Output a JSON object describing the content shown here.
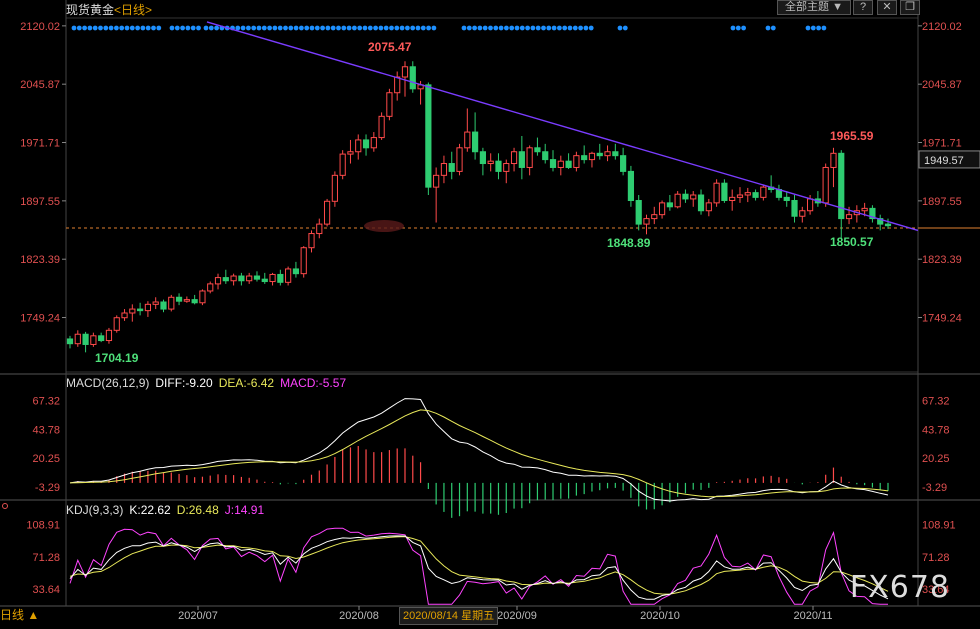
{
  "header": {
    "instrument": "现货黄金",
    "period_open": "<",
    "period": "日线",
    "period_close": ">"
  },
  "toolbar": {
    "theme_label": "全部主题",
    "theme_caret": "▼",
    "b1": "?",
    "b2": "✕",
    "b3": "❐"
  },
  "main_axis": {
    "ticks": [
      "2120.02",
      "2045.87",
      "1971.71",
      "1897.55",
      "1823.39",
      "1749.24"
    ],
    "current_price": "1949.57"
  },
  "annotations": {
    "high1": "2075.47",
    "low1": "1704.19",
    "low2": "1848.89",
    "high2": "1965.59",
    "low3": "1850.57"
  },
  "macd": {
    "title": "MACD(26,12,9)",
    "diff": "DIFF:-9.20",
    "dea": "DEA:-6.42",
    "macd": "MACD:-5.57",
    "ticks": [
      "67.32",
      "43.78",
      "20.25",
      "-3.29"
    ]
  },
  "kdj": {
    "title": "KDJ(9,3,3)",
    "k": "K:22.62",
    "d": "D:26.48",
    "j": "J:14.91",
    "ticks": [
      "108.91",
      "71.28",
      "33.64"
    ]
  },
  "xaxis": {
    "labels": [
      "2020/07",
      "2020/08",
      "2020/09",
      "2020/10",
      "2020/11"
    ],
    "cursor_date": "2020/08/14 星期五"
  },
  "footer": {
    "period_tab": "日线 ▲"
  },
  "watermark": "FX678",
  "colors": {
    "up": "#ff4a4a",
    "down": "#2ecc71",
    "trend": "#7a3cff",
    "dif": "#ffffff",
    "dea": "#e8e85a",
    "j": "#ff44ff",
    "dots": "#1e90ff"
  },
  "chart_data": {
    "type": "candlestick",
    "instrument": "现货黄金",
    "period": "日线",
    "ylim": [
      1680,
      2130
    ],
    "candles": [
      [
        1722,
        1726,
        1710,
        1716
      ],
      [
        1716,
        1733,
        1712,
        1728
      ],
      [
        1728,
        1731,
        1705,
        1715
      ],
      [
        1715,
        1730,
        1712,
        1726
      ],
      [
        1726,
        1730,
        1718,
        1720
      ],
      [
        1720,
        1736,
        1716,
        1733
      ],
      [
        1733,
        1752,
        1730,
        1749
      ],
      [
        1749,
        1760,
        1745,
        1755
      ],
      [
        1755,
        1766,
        1744,
        1760
      ],
      [
        1760,
        1768,
        1752,
        1758
      ],
      [
        1758,
        1770,
        1750,
        1766
      ],
      [
        1766,
        1775,
        1760,
        1769
      ],
      [
        1769,
        1772,
        1756,
        1760
      ],
      [
        1760,
        1778,
        1757,
        1775
      ],
      [
        1775,
        1780,
        1765,
        1770
      ],
      [
        1770,
        1776,
        1768,
        1772
      ],
      [
        1772,
        1778,
        1766,
        1768
      ],
      [
        1768,
        1785,
        1765,
        1783
      ],
      [
        1783,
        1795,
        1780,
        1792
      ],
      [
        1792,
        1805,
        1785,
        1800
      ],
      [
        1800,
        1810,
        1792,
        1796
      ],
      [
        1796,
        1805,
        1790,
        1802
      ],
      [
        1802,
        1806,
        1790,
        1796
      ],
      [
        1796,
        1806,
        1792,
        1802
      ],
      [
        1802,
        1808,
        1795,
        1798
      ],
      [
        1798,
        1806,
        1792,
        1795
      ],
      [
        1795,
        1806,
        1790,
        1804
      ],
      [
        1804,
        1810,
        1790,
        1794
      ],
      [
        1794,
        1814,
        1790,
        1811
      ],
      [
        1811,
        1820,
        1800,
        1805
      ],
      [
        1805,
        1840,
        1800,
        1838
      ],
      [
        1838,
        1860,
        1832,
        1856
      ],
      [
        1856,
        1875,
        1850,
        1868
      ],
      [
        1868,
        1900,
        1865,
        1897
      ],
      [
        1897,
        1935,
        1890,
        1930
      ],
      [
        1930,
        1962,
        1925,
        1957
      ],
      [
        1957,
        1975,
        1945,
        1960
      ],
      [
        1960,
        1982,
        1950,
        1975
      ],
      [
        1975,
        1982,
        1955,
        1965
      ],
      [
        1965,
        1985,
        1960,
        1978
      ],
      [
        1978,
        2010,
        1975,
        2005
      ],
      [
        2005,
        2040,
        2000,
        2035
      ],
      [
        2035,
        2062,
        2025,
        2055
      ],
      [
        2055,
        2075,
        2030,
        2068
      ],
      [
        2068,
        2075,
        2035,
        2040
      ],
      [
        2040,
        2050,
        2020,
        2045
      ],
      [
        2045,
        2048,
        1905,
        1915
      ],
      [
        1915,
        1940,
        1870,
        1930
      ],
      [
        1930,
        1955,
        1920,
        1945
      ],
      [
        1945,
        1960,
        1925,
        1935
      ],
      [
        1935,
        1970,
        1930,
        1965
      ],
      [
        1965,
        2015,
        1960,
        1985
      ],
      [
        1985,
        2010,
        1950,
        1960
      ],
      [
        1960,
        1965,
        1930,
        1945
      ],
      [
        1945,
        1958,
        1935,
        1948
      ],
      [
        1948,
        1958,
        1925,
        1935
      ],
      [
        1935,
        1950,
        1920,
        1945
      ],
      [
        1945,
        1965,
        1935,
        1960
      ],
      [
        1960,
        1980,
        1925,
        1940
      ],
      [
        1940,
        1968,
        1930,
        1965
      ],
      [
        1965,
        1978,
        1955,
        1960
      ],
      [
        1960,
        1970,
        1945,
        1950
      ],
      [
        1950,
        1962,
        1935,
        1940
      ],
      [
        1940,
        1955,
        1930,
        1948
      ],
      [
        1948,
        1958,
        1938,
        1940
      ],
      [
        1940,
        1960,
        1935,
        1955
      ],
      [
        1955,
        1968,
        1945,
        1950
      ],
      [
        1950,
        1960,
        1940,
        1958
      ],
      [
        1958,
        1970,
        1950,
        1955
      ],
      [
        1955,
        1968,
        1948,
        1960
      ],
      [
        1960,
        1970,
        1950,
        1955
      ],
      [
        1955,
        1965,
        1930,
        1935
      ],
      [
        1935,
        1942,
        1890,
        1898
      ],
      [
        1898,
        1905,
        1860,
        1868
      ],
      [
        1868,
        1880,
        1855,
        1875
      ],
      [
        1875,
        1890,
        1868,
        1880
      ],
      [
        1880,
        1898,
        1875,
        1895
      ],
      [
        1895,
        1905,
        1885,
        1890
      ],
      [
        1890,
        1910,
        1888,
        1906
      ],
      [
        1906,
        1912,
        1895,
        1900
      ],
      [
        1900,
        1910,
        1890,
        1905
      ],
      [
        1905,
        1912,
        1880,
        1885
      ],
      [
        1885,
        1900,
        1878,
        1895
      ],
      [
        1895,
        1925,
        1890,
        1920
      ],
      [
        1920,
        1925,
        1895,
        1898
      ],
      [
        1898,
        1912,
        1885,
        1902
      ],
      [
        1902,
        1915,
        1895,
        1905
      ],
      [
        1905,
        1914,
        1896,
        1908
      ],
      [
        1908,
        1912,
        1898,
        1902
      ],
      [
        1902,
        1918,
        1898,
        1915
      ],
      [
        1915,
        1930,
        1908,
        1912
      ],
      [
        1912,
        1918,
        1898,
        1902
      ],
      [
        1902,
        1910,
        1890,
        1898
      ],
      [
        1898,
        1905,
        1870,
        1878
      ],
      [
        1878,
        1890,
        1870,
        1885
      ],
      [
        1885,
        1905,
        1880,
        1900
      ],
      [
        1900,
        1910,
        1890,
        1895
      ],
      [
        1895,
        1945,
        1890,
        1940
      ],
      [
        1940,
        1965,
        1915,
        1958
      ],
      [
        1958,
        1962,
        1850,
        1875
      ],
      [
        1875,
        1890,
        1868,
        1880
      ],
      [
        1880,
        1892,
        1870,
        1885
      ],
      [
        1885,
        1895,
        1878,
        1888
      ],
      [
        1888,
        1892,
        1870,
        1875
      ],
      [
        1875,
        1880,
        1860,
        1868
      ],
      [
        1868,
        1875,
        1862,
        1866
      ]
    ],
    "trendline": {
      "from_index": 24,
      "from_price": 2125,
      "to_index": 108,
      "to_price": 1868
    },
    "support_level": 1863,
    "macd": {
      "ylim": [
        -14,
        76
      ],
      "dif_start": 0,
      "dif_peak": 68,
      "dif_peak_index": 45,
      "dif_low": -18,
      "dif_end": -9.2,
      "hist_sign_change_index": 47
    },
    "kdj": {
      "ylim": [
        14,
        120
      ]
    }
  }
}
